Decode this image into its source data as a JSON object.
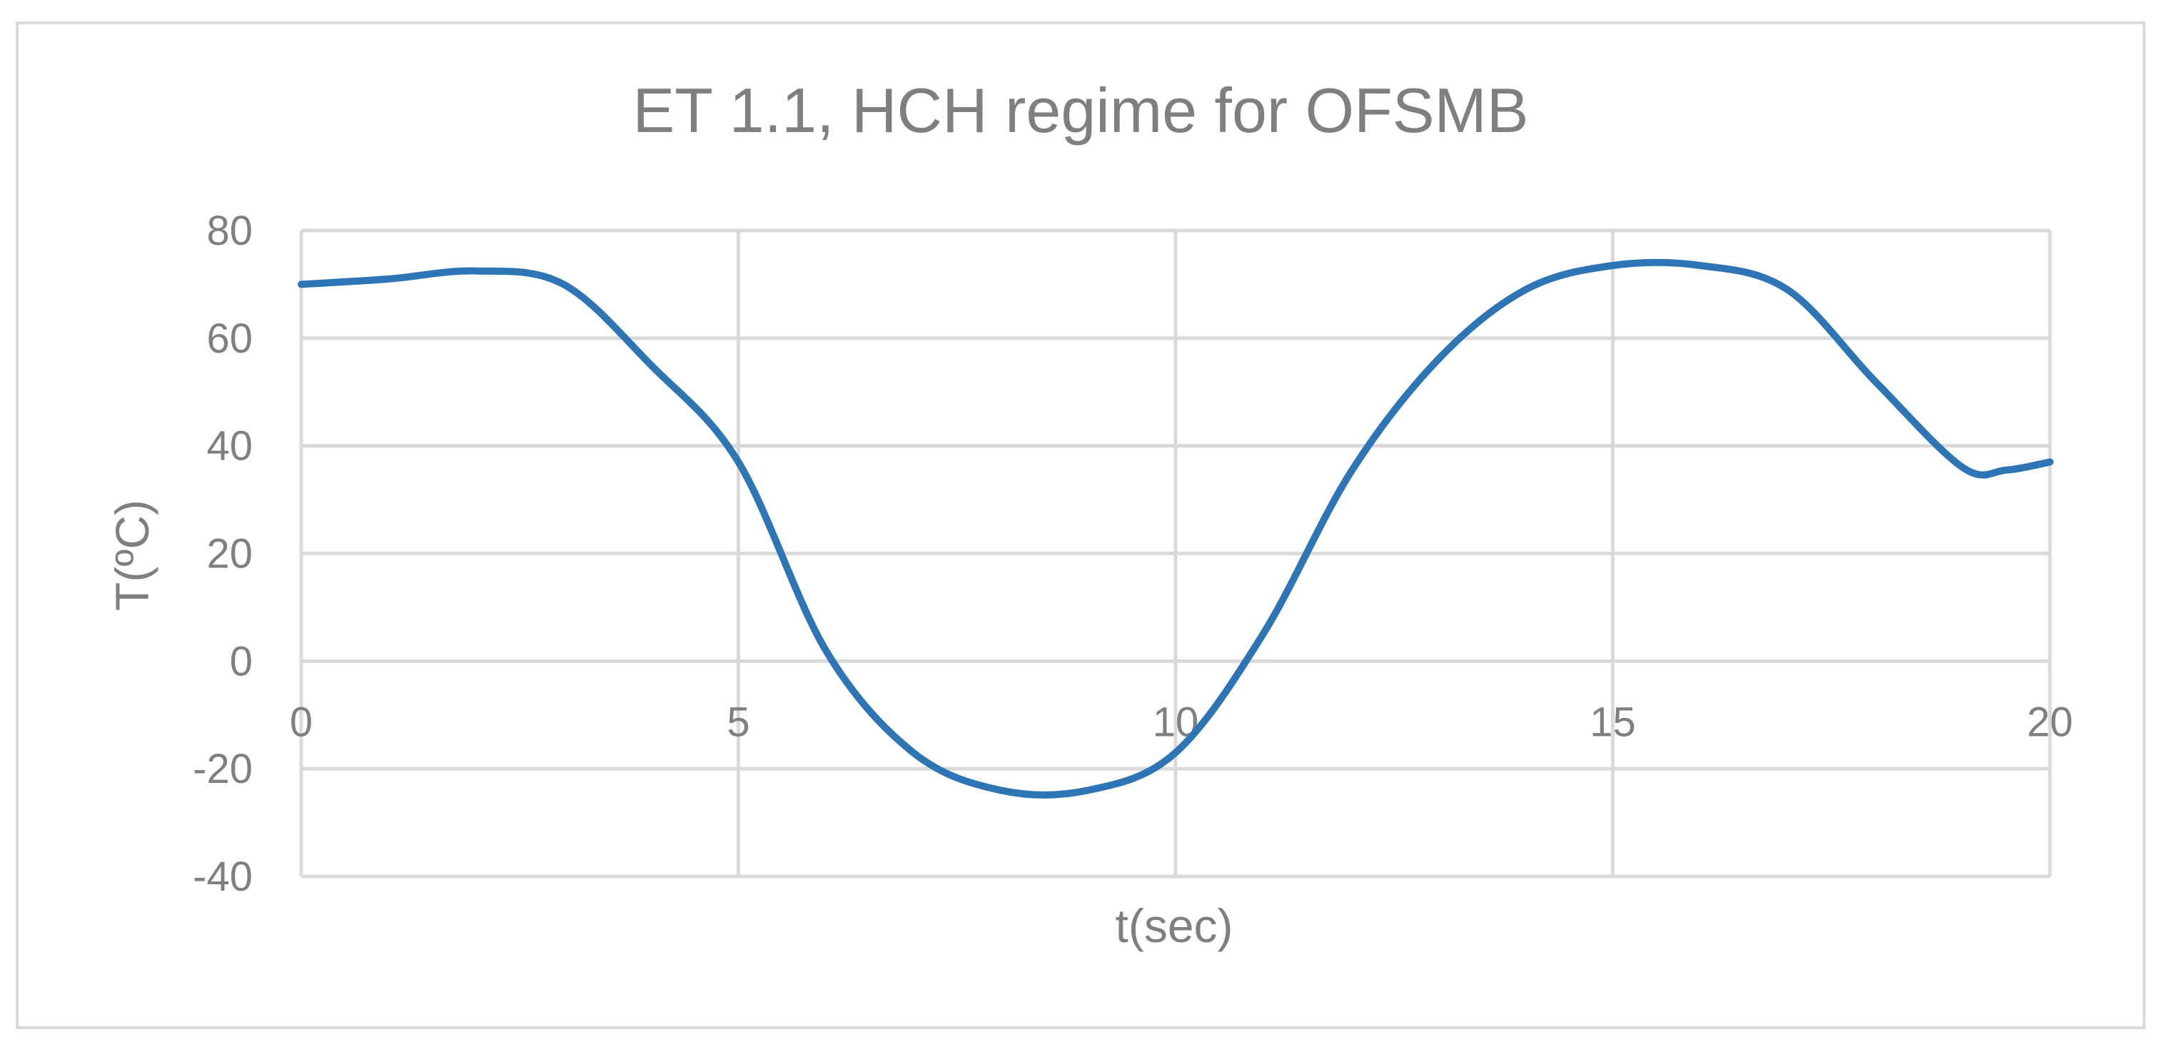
{
  "chart_data": {
    "type": "line",
    "title": "ET 1.1, HCH regime for OFSMB",
    "xlabel": "t(sec)",
    "ylabel": "T(ºC)",
    "xlim": [
      0,
      20
    ],
    "ylim": [
      -40,
      80
    ],
    "x_ticks": [
      "0",
      "5",
      "10",
      "15",
      "20"
    ],
    "y_ticks": [
      "-40",
      "-20",
      "0",
      "20",
      "40",
      "60",
      "80"
    ],
    "grid": true,
    "legend": "none",
    "series": [
      {
        "color": "#2e75b6",
        "x": [
          0,
          1,
          2,
          3,
          4,
          5,
          6,
          7,
          8,
          9,
          10,
          11,
          12,
          13,
          14,
          15,
          16,
          17,
          18,
          19,
          19.5,
          20
        ],
        "y": [
          70,
          71,
          72.5,
          70,
          55,
          37,
          2,
          -17,
          -24,
          -24,
          -17,
          5,
          35,
          56,
          69,
          73.5,
          73.5,
          69,
          52,
          36,
          35.5,
          37
        ]
      }
    ]
  }
}
